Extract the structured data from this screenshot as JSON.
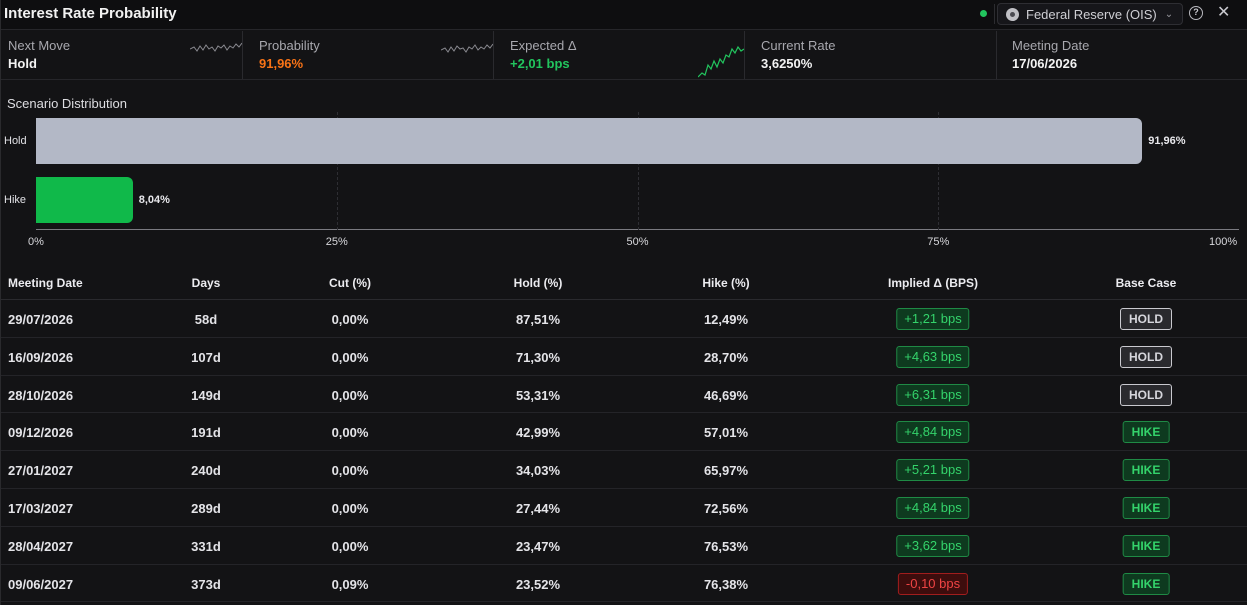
{
  "header": {
    "title": "Interest Rate Probability",
    "source_label": "Federal Reserve (OIS)",
    "source_icon": "fed-seal-icon",
    "live_color": "#22c55e"
  },
  "stats": [
    {
      "label": "Next Move",
      "value": "Hold",
      "color": "#f4f4f4",
      "sparkline": "grey"
    },
    {
      "label": "Probability",
      "value": "91,96%",
      "color": "#f97316",
      "sparkline": "grey"
    },
    {
      "label": "Expected Δ",
      "value": "+2,01 bps",
      "color": "#22c55e",
      "sparkline": "green"
    },
    {
      "label": "Current Rate",
      "value": "3,6250%",
      "color": "#f4f4f4"
    },
    {
      "label": "Meeting Date",
      "value": "17/06/2026",
      "color": "#f4f4f4"
    }
  ],
  "chart_data": {
    "type": "bar",
    "orientation": "horizontal",
    "title": "Scenario Distribution",
    "categories": [
      "Hold",
      "Hike"
    ],
    "values": [
      91.96,
      8.04
    ],
    "value_labels": [
      "91,96%",
      "8,04%"
    ],
    "colors": [
      "#b3b8c6",
      "#10b94a"
    ],
    "xlim": [
      0,
      100
    ],
    "x_ticks": [
      "0%",
      "25%",
      "50%",
      "75%",
      "100%"
    ],
    "grid": true
  },
  "table": {
    "columns": [
      "Meeting Date",
      "Days",
      "Cut (%)",
      "Hold (%)",
      "Hike (%)",
      "Implied Δ (BPS)",
      "Base Case"
    ],
    "rows": [
      {
        "date": "29/07/2026",
        "days": "58d",
        "cut": "0,00%",
        "hold": "87,51%",
        "hike": "12,49%",
        "implied": "+1,21 bps",
        "implied_sign": "pos",
        "base": "HOLD"
      },
      {
        "date": "16/09/2026",
        "days": "107d",
        "cut": "0,00%",
        "hold": "71,30%",
        "hike": "28,70%",
        "implied": "+4,63 bps",
        "implied_sign": "pos",
        "base": "HOLD"
      },
      {
        "date": "28/10/2026",
        "days": "149d",
        "cut": "0,00%",
        "hold": "53,31%",
        "hike": "46,69%",
        "implied": "+6,31 bps",
        "implied_sign": "pos",
        "base": "HOLD"
      },
      {
        "date": "09/12/2026",
        "days": "191d",
        "cut": "0,00%",
        "hold": "42,99%",
        "hike": "57,01%",
        "implied": "+4,84 bps",
        "implied_sign": "pos",
        "base": "HIKE"
      },
      {
        "date": "27/01/2027",
        "days": "240d",
        "cut": "0,00%",
        "hold": "34,03%",
        "hike": "65,97%",
        "implied": "+5,21 bps",
        "implied_sign": "pos",
        "base": "HIKE"
      },
      {
        "date": "17/03/2027",
        "days": "289d",
        "cut": "0,00%",
        "hold": "27,44%",
        "hike": "72,56%",
        "implied": "+4,84 bps",
        "implied_sign": "pos",
        "base": "HIKE"
      },
      {
        "date": "28/04/2027",
        "days": "331d",
        "cut": "0,00%",
        "hold": "23,47%",
        "hike": "76,53%",
        "implied": "+3,62 bps",
        "implied_sign": "pos",
        "base": "HIKE"
      },
      {
        "date": "09/06/2027",
        "days": "373d",
        "cut": "0,09%",
        "hold": "23,52%",
        "hike": "76,38%",
        "implied": "-0,10 bps",
        "implied_sign": "neg",
        "base": "HIKE"
      }
    ]
  }
}
